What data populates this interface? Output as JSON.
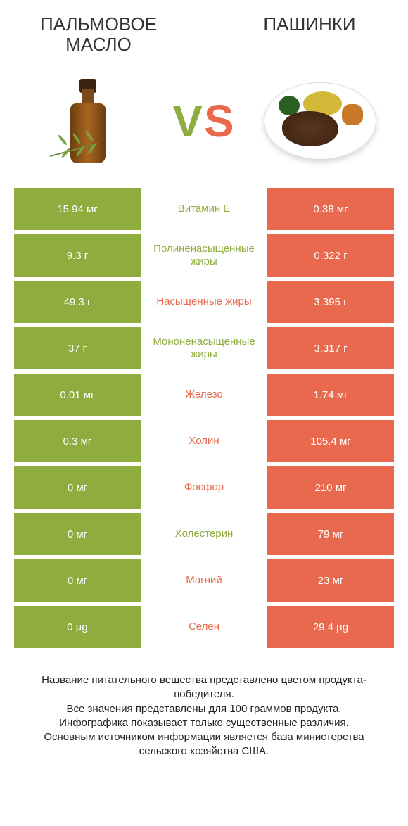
{
  "titles": {
    "left": "ПАЛЬМОВОЕ МАСЛО",
    "right": "ПАШИНКИ"
  },
  "vs": {
    "v": "V",
    "s": "S"
  },
  "colors": {
    "green": "#8fad3f",
    "orange": "#e8694d",
    "white": "#ffffff"
  },
  "rows": [
    {
      "left": "15.94 мг",
      "label": "Витамин E",
      "right": "0.38 мг",
      "winner": "left"
    },
    {
      "left": "9.3 г",
      "label": "Полиненасыщенные жиры",
      "right": "0.322 г",
      "winner": "left"
    },
    {
      "left": "49.3 г",
      "label": "Насыщенные жиры",
      "right": "3.395 г",
      "winner": "right"
    },
    {
      "left": "37 г",
      "label": "Мононенасыщенные жиры",
      "right": "3.317 г",
      "winner": "left"
    },
    {
      "left": "0.01 мг",
      "label": "Железо",
      "right": "1.74 мг",
      "winner": "right"
    },
    {
      "left": "0.3 мг",
      "label": "Холин",
      "right": "105.4 мг",
      "winner": "right"
    },
    {
      "left": "0 мг",
      "label": "Фосфор",
      "right": "210 мг",
      "winner": "right"
    },
    {
      "left": "0 мг",
      "label": "Холестерин",
      "right": "79 мг",
      "winner": "left"
    },
    {
      "left": "0 мг",
      "label": "Магний",
      "right": "23 мг",
      "winner": "right"
    },
    {
      "left": "0 µg",
      "label": "Селен",
      "right": "29.4 µg",
      "winner": "right"
    }
  ],
  "footer": {
    "line1": "Название питательного вещества представлено цветом продукта-победителя.",
    "line2": "Все значения представлены для 100 граммов продукта.",
    "line3": "Инфографика показывает только существенные различия.",
    "line4": "Основным источником информации является база министерства сельского хозяйства США."
  }
}
